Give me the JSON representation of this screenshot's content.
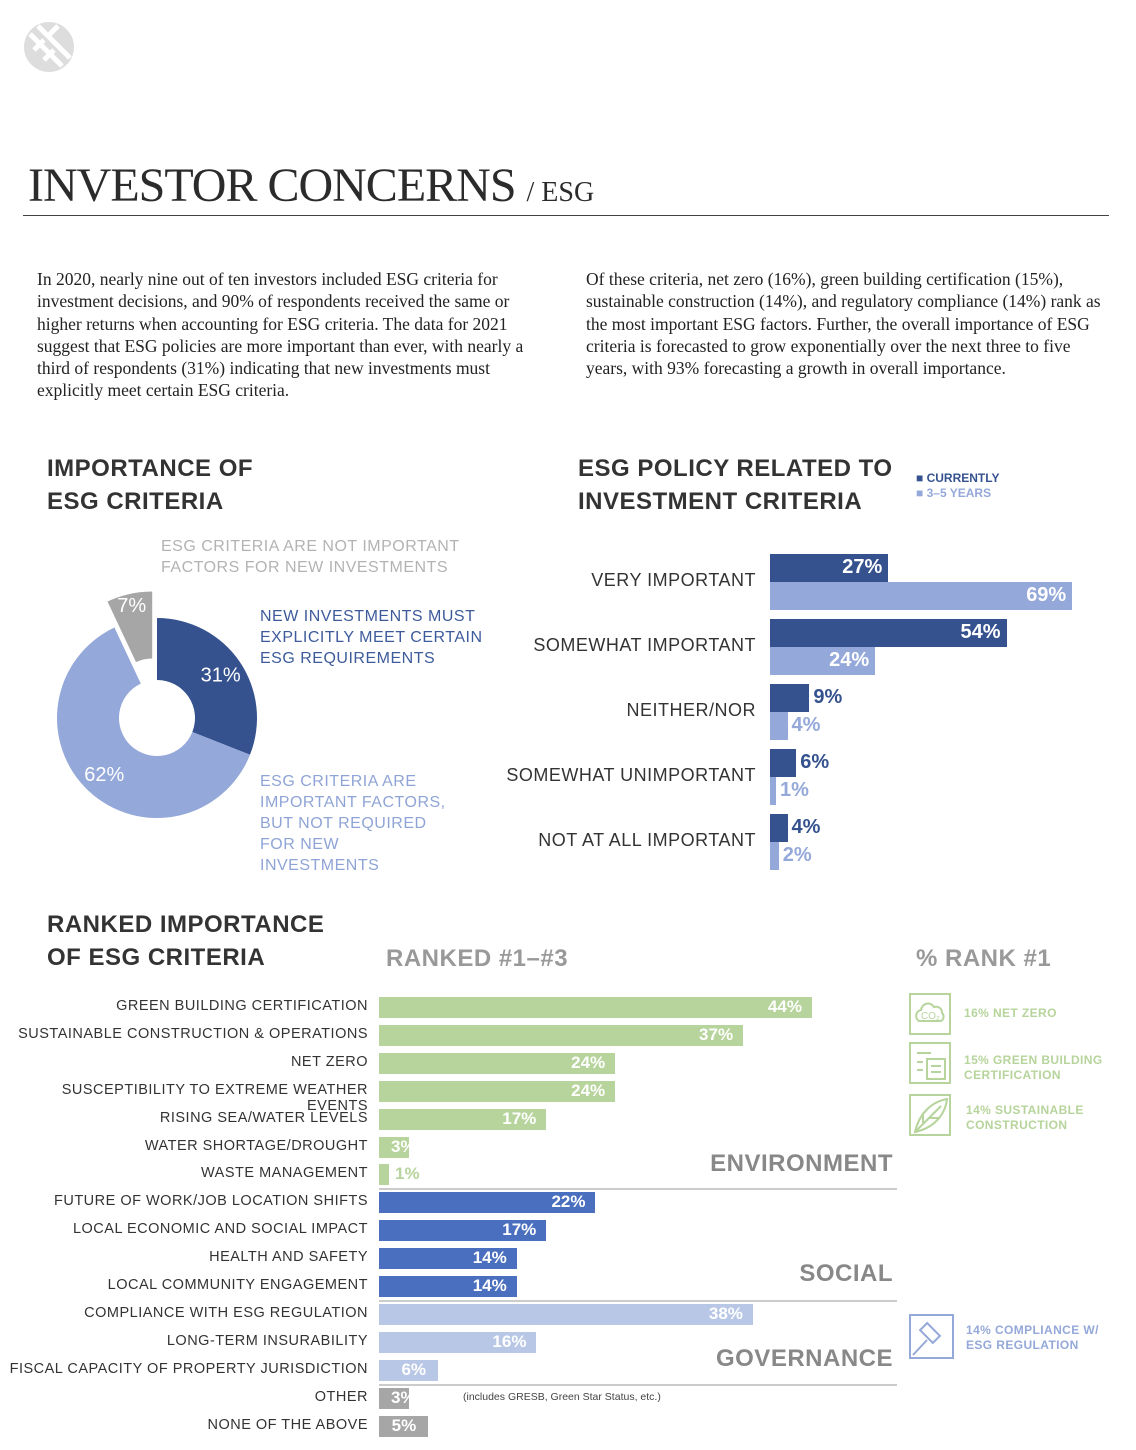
{
  "header": {
    "title": "INVESTOR CONCERNS",
    "subtitle": "/ ESG"
  },
  "intro": {
    "left": "In 2020, nearly nine out of ten investors included ESG criteria for investment decisions, and 90% of respondents received the same or higher returns when accounting for ESG criteria. The data for 2021 suggest that ESG policies are more important than ever, with nearly a third of respondents (31%) indicating that new investments must explicitly meet certain ESG criteria.",
    "right": "Of these criteria, net zero (16%), green building certification (15%), sustainable construction (14%), and regulatory compliance (14%) rank as the most important ESG factors. Further, the overall importance of ESG criteria is forecasted to grow exponentially over the next three to five years, with 93% forecasting a growth in overall importance."
  },
  "colors": {
    "navy": "#35528f",
    "light_blue": "#94a8d9",
    "grey": "#a6a6a6",
    "green": "#b6d49b",
    "social": "#4a6fbe",
    "governance": "#b8c7e6"
  },
  "chart_data": [
    {
      "type": "pie",
      "title": "IMPORTANCE OF ESG CRITERIA",
      "slices": [
        {
          "label": "NEW INVESTMENTS MUST EXPLICITLY MEET CERTAIN ESG REQUIREMENTS",
          "value": 31,
          "display": "31%",
          "color": "#35528f"
        },
        {
          "label": "ESG CRITERIA ARE IMPORTANT FACTORS, BUT NOT REQUIRED FOR NEW INVESTMENTS",
          "value": 62,
          "display": "62%",
          "color": "#94a8d9"
        },
        {
          "label": "ESG CRITERIA ARE NOT IMPORTANT FACTORS FOR NEW INVESTMENTS",
          "value": 7,
          "display": "7%",
          "color": "#a6a6a6"
        }
      ]
    },
    {
      "type": "bar",
      "orientation": "horizontal",
      "title": "ESG POLICY RELATED TO INVESTMENT CRITERIA",
      "legend_position": "top-right",
      "categories": [
        "VERY IMPORTANT",
        "SOMEWHAT IMPORTANT",
        "NEITHER/NOR",
        "SOMEWHAT UNIMPORTANT",
        "NOT AT ALL IMPORTANT"
      ],
      "series": [
        {
          "name": "CURRENTLY",
          "color": "#35528f",
          "values": [
            27,
            54,
            9,
            6,
            4
          ]
        },
        {
          "name": "3–5 YEARS",
          "color": "#94a8d9",
          "values": [
            69,
            24,
            4,
            1,
            2
          ]
        }
      ]
    },
    {
      "type": "bar",
      "orientation": "horizontal",
      "title": "RANKED IMPORTANCE OF ESG CRITERIA",
      "subtitle": "RANKED #1–#3",
      "groups": [
        {
          "name": "ENVIRONMENT",
          "color": "#b6d49b",
          "items": [
            [
              "GREEN BUILDING CERTIFICATION",
              44
            ],
            [
              "SUSTAINABLE CONSTRUCTION & OPERATIONS",
              37
            ],
            [
              "NET ZERO",
              24
            ],
            [
              "SUSCEPTIBILITY TO EXTREME WEATHER EVENTS",
              24
            ],
            [
              "RISING SEA/WATER LEVELS",
              17
            ],
            [
              "WATER SHORTAGE/DROUGHT",
              3
            ],
            [
              "WASTE MANAGEMENT",
              1
            ]
          ]
        },
        {
          "name": "SOCIAL",
          "color": "#4a6fbe",
          "items": [
            [
              "FUTURE OF WORK/JOB LOCATION SHIFTS",
              22
            ],
            [
              "LOCAL ECONOMIC AND SOCIAL IMPACT",
              17
            ],
            [
              "HEALTH AND SAFETY",
              14
            ],
            [
              "LOCAL COMMUNITY ENGAGEMENT",
              14
            ]
          ]
        },
        {
          "name": "GOVERNANCE",
          "color": "#b8c7e6",
          "items": [
            [
              "COMPLIANCE WITH ESG REGULATION",
              38
            ],
            [
              "LONG-TERM INSURABILITY",
              16
            ],
            [
              "FISCAL CAPACITY OF PROPERTY JURISDICTION",
              6
            ]
          ]
        },
        {
          "name": "",
          "color": "#a6a6a6",
          "items": [
            [
              "OTHER",
              3
            ],
            [
              "NONE OF THE ABOVE",
              5
            ]
          ]
        }
      ],
      "note": "(includes GRESB, Green Star Status, etc.)"
    }
  ],
  "rank1": {
    "title": "% RANK #1",
    "items": [
      {
        "icon": "co2-cloud-icon",
        "text": "16% NET ZERO",
        "color": "#b6d49b"
      },
      {
        "icon": "certificate-document-icon",
        "text": "15% GREEN BUILDING CERTIFICATION",
        "color": "#b6d49b"
      },
      {
        "icon": "leaf-icon",
        "text": "14% SUSTAINABLE CONSTRUCTION",
        "color": "#b6d49b"
      },
      {
        "icon": "gavel-icon",
        "text": "14% COMPLIANCE W/ ESG REGULATION",
        "color": "#94a8d9"
      }
    ]
  }
}
